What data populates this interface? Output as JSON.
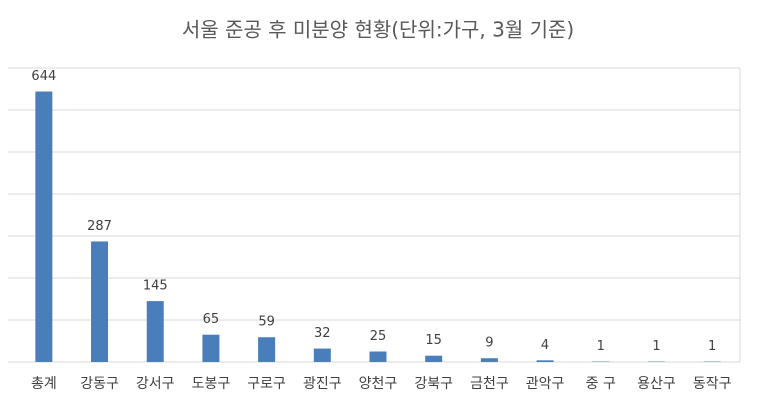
{
  "chart_data": {
    "type": "bar",
    "title": "서울 준공 후 미분양 현황(단위:가구, 3월 기준)",
    "categories": [
      "총계",
      "강동구",
      "강서구",
      "도봉구",
      "구로구",
      "광진구",
      "양천구",
      "강북구",
      "금천구",
      "관악구",
      "중 구",
      "용산구",
      "동작구"
    ],
    "values": [
      644,
      287,
      145,
      65,
      59,
      32,
      25,
      15,
      9,
      4,
      1,
      1,
      1
    ],
    "color": "#4a7ebb",
    "ylim": [
      0,
      700
    ],
    "yticks": [
      0,
      100,
      200,
      300,
      400,
      500,
      600,
      700
    ],
    "ytick_labels": false,
    "grid": true,
    "data_labels": true
  }
}
